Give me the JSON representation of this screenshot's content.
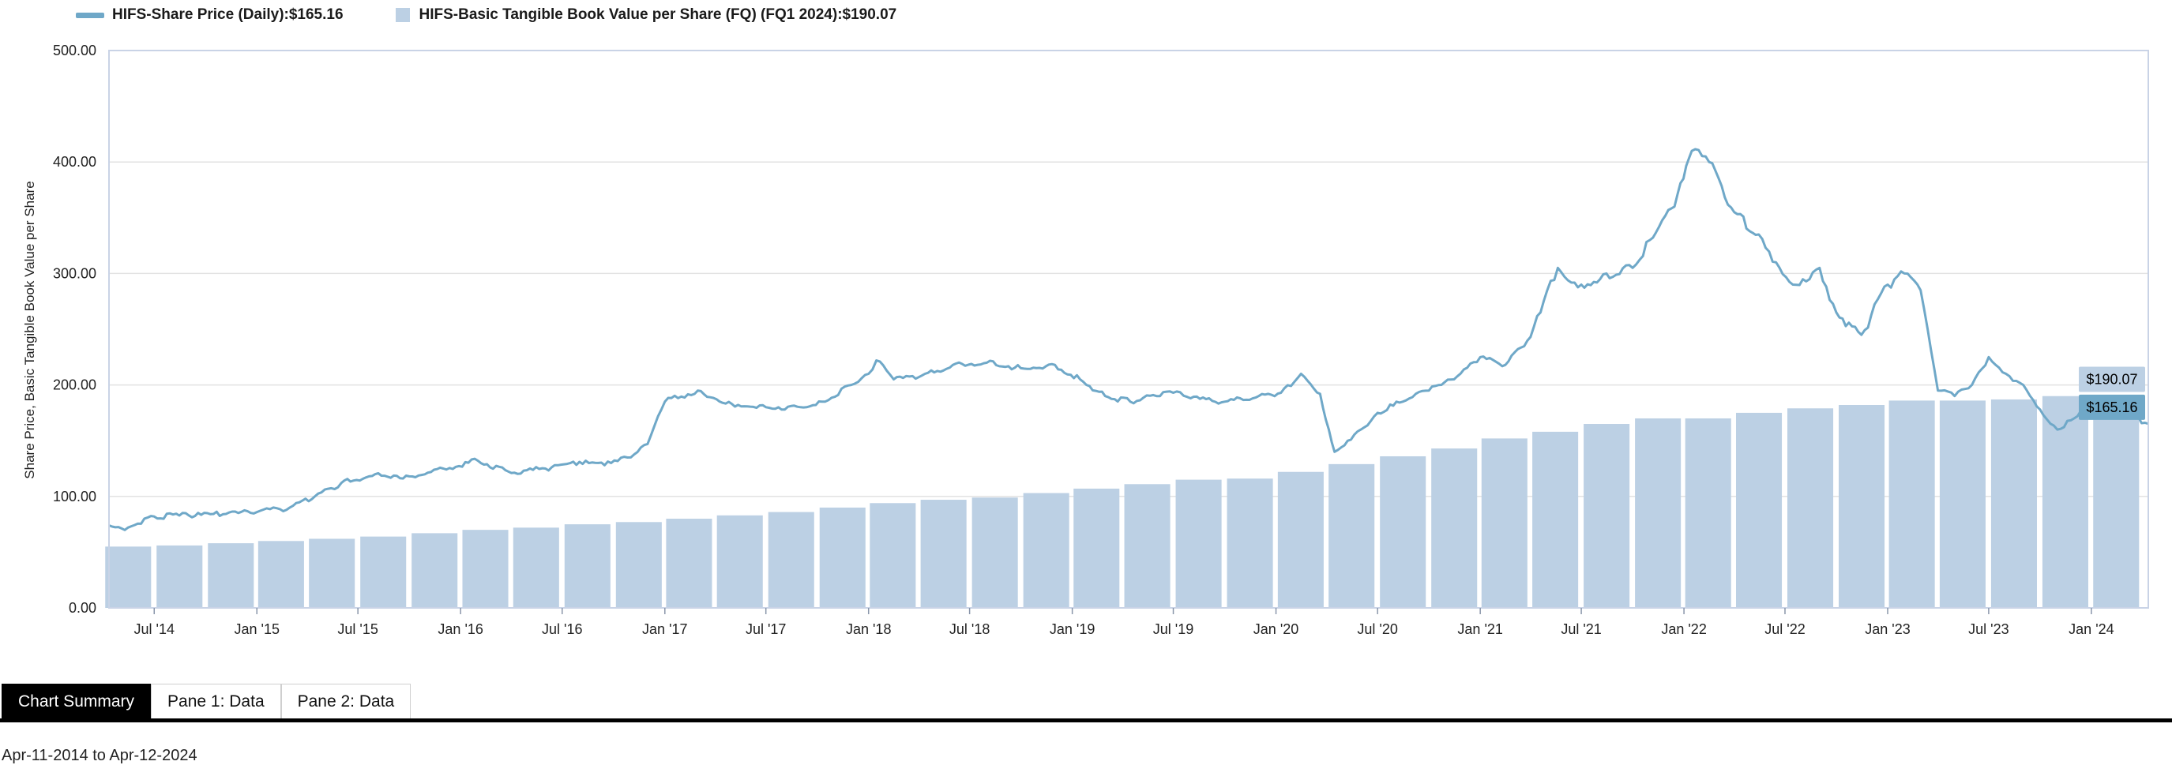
{
  "legend": {
    "price_label": "HIFS-Share Price (Daily):",
    "price_value": "$165.16",
    "book_label": "HIFS-Basic Tangible Book Value per Share (FQ) (FQ1 2024):",
    "book_value": "$190.07"
  },
  "colors": {
    "price": "#6fa8c8",
    "book": "#bcd0e4",
    "grid": "#e2e2e2",
    "axis": "#c9d3e6"
  },
  "tabs": [
    "Chart Summary",
    "Pane 1: Data",
    "Pane 2: Data"
  ],
  "date_range": "Apr-11-2014 to Apr-12-2024",
  "chart_data": {
    "type": "bar+line",
    "ylabel": "Share Price, Basic Tangible Book Value per Share",
    "ylim": [
      0,
      500
    ],
    "y_ticks": [
      "0.00",
      "100.00",
      "200.00",
      "300.00",
      "400.00",
      "500.00"
    ],
    "x_range": [
      "2014-04-11",
      "2024-04-12"
    ],
    "x_ticks": [
      "Jul '14",
      "Jan '15",
      "Jul '15",
      "Jan '16",
      "Jul '16",
      "Jan '17",
      "Jul '17",
      "Jan '18",
      "Jul '18",
      "Jan '19",
      "Jul '19",
      "Jan '20",
      "Jul '20",
      "Jan '21",
      "Jul '21",
      "Jan '22",
      "Jul '22",
      "Jan '23",
      "Jul '23",
      "Jan '24"
    ],
    "end_labels": {
      "book": "$190.07",
      "price": "$165.16"
    },
    "series": [
      {
        "name": "HIFS-Basic Tangible Book Value per Share (FQ)",
        "kind": "bar",
        "x": [
          "2014-06-30",
          "2014-09-30",
          "2014-12-31",
          "2015-03-31",
          "2015-06-30",
          "2015-09-30",
          "2015-12-31",
          "2016-03-31",
          "2016-06-30",
          "2016-09-30",
          "2016-12-31",
          "2017-03-31",
          "2017-06-30",
          "2017-09-30",
          "2017-12-31",
          "2018-03-31",
          "2018-06-30",
          "2018-09-30",
          "2018-12-31",
          "2019-03-31",
          "2019-06-30",
          "2019-09-30",
          "2019-12-31",
          "2020-03-31",
          "2020-06-30",
          "2020-09-30",
          "2020-12-31",
          "2021-03-31",
          "2021-06-30",
          "2021-09-30",
          "2021-12-31",
          "2022-03-31",
          "2022-06-30",
          "2022-09-30",
          "2022-12-31",
          "2023-03-31",
          "2023-06-30",
          "2023-09-30",
          "2023-12-31",
          "2024-03-31"
        ],
        "values": [
          55,
          56,
          58,
          60,
          62,
          64,
          67,
          70,
          72,
          75,
          77,
          80,
          83,
          86,
          90,
          94,
          97,
          99,
          103,
          107,
          111,
          115,
          116,
          122,
          129,
          136,
          143,
          152,
          158,
          165,
          170,
          170,
          175,
          179,
          182,
          186,
          186,
          187,
          190,
          190.07
        ]
      },
      {
        "name": "HIFS-Share Price (Daily)",
        "kind": "line",
        "x": [
          "2014-04-11",
          "2014-05-15",
          "2014-07-01",
          "2014-09-01",
          "2014-11-01",
          "2015-01-01",
          "2015-03-01",
          "2015-04-15",
          "2015-06-01",
          "2015-08-01",
          "2015-10-01",
          "2015-12-01",
          "2016-02-01",
          "2016-04-01",
          "2016-06-01",
          "2016-08-01",
          "2016-09-15",
          "2016-11-01",
          "2016-12-01",
          "2017-01-01",
          "2017-03-01",
          "2017-05-01",
          "2017-07-01",
          "2017-09-01",
          "2017-10-15",
          "2017-12-01",
          "2018-01-01",
          "2018-01-15",
          "2018-02-15",
          "2018-04-01",
          "2018-06-01",
          "2018-08-01",
          "2018-10-01",
          "2018-12-01",
          "2019-01-15",
          "2019-03-01",
          "2019-04-15",
          "2019-06-01",
          "2019-07-01",
          "2019-08-01",
          "2019-10-01",
          "2019-12-01",
          "2020-01-10",
          "2020-02-15",
          "2020-03-20",
          "2020-04-15",
          "2020-06-01",
          "2020-07-01",
          "2020-08-15",
          "2020-10-01",
          "2020-11-15",
          "2021-01-01",
          "2021-02-15",
          "2021-04-01",
          "2021-05-01",
          "2021-05-20",
          "2021-07-01",
          "2021-08-15",
          "2021-10-01",
          "2021-11-01",
          "2021-12-15",
          "2021-12-31",
          "2022-01-15",
          "2022-02-15",
          "2022-04-01",
          "2022-05-15",
          "2022-06-15",
          "2022-07-15",
          "2022-09-01",
          "2022-10-01",
          "2022-11-15",
          "2023-01-01",
          "2023-01-31",
          "2023-03-01",
          "2023-04-01",
          "2023-05-01",
          "2023-06-01",
          "2023-07-01",
          "2023-08-01",
          "2023-09-01",
          "2023-10-01",
          "2023-11-01",
          "2023-12-01",
          "2024-01-01",
          "2024-02-01",
          "2024-03-01",
          "2024-04-12"
        ],
        "values": [
          74,
          72,
          82,
          83,
          84,
          86,
          90,
          100,
          112,
          120,
          118,
          125,
          132,
          121,
          125,
          131,
          128,
          135,
          147,
          185,
          195,
          183,
          180,
          180,
          185,
          200,
          210,
          222,
          205,
          207,
          218,
          220,
          215,
          218,
          205,
          190,
          185,
          190,
          193,
          188,
          185,
          190,
          193,
          210,
          192,
          140,
          160,
          175,
          185,
          195,
          205,
          225,
          218,
          243,
          285,
          305,
          290,
          300,
          305,
          330,
          360,
          385,
          410,
          400,
          355,
          335,
          310,
          290,
          305,
          265,
          245,
          290,
          300,
          285,
          195,
          190,
          200,
          225,
          210,
          200,
          178,
          160,
          170,
          185,
          172,
          175,
          165.16
        ]
      }
    ]
  }
}
